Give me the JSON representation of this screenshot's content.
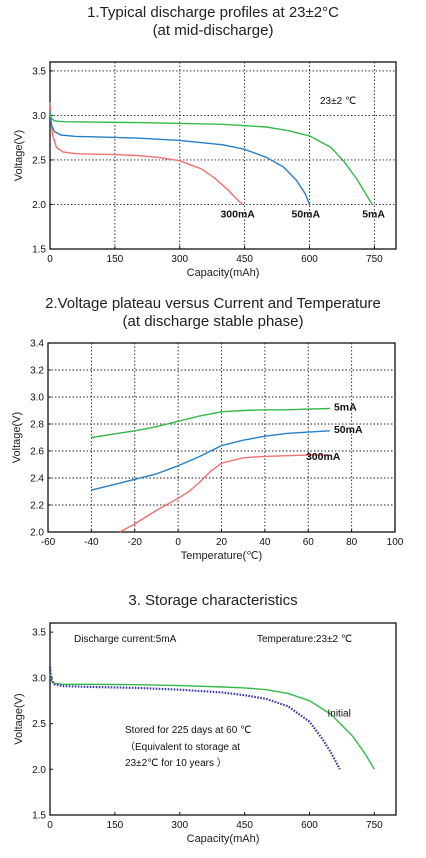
{
  "chart_data": [
    {
      "type": "line",
      "title": "1.Typical discharge profiles at 23±2°C",
      "subtitle": "(at mid-discharge)",
      "xlabel": "Capacity(mAh)",
      "ylabel": "Voltage(V)",
      "xlim": [
        0,
        800
      ],
      "ylim": [
        1.5,
        3.6
      ],
      "xticks": [
        0,
        150,
        300,
        450,
        600,
        750
      ],
      "yticks": [
        1.5,
        2.0,
        2.5,
        3.0,
        3.5
      ],
      "xtick_labels": [
        "0",
        "150",
        "300",
        "450",
        "600",
        "750"
      ],
      "ytick_labels": [
        "1.5",
        "2.0",
        "2.5",
        "3.0",
        "3.5"
      ],
      "grid": true,
      "annotations": [
        "23±2 ℃"
      ],
      "colors": {
        "300mA": "#f07070",
        "50mA": "#2a7fc4",
        "5mA": "#35b84a"
      },
      "series": [
        {
          "name": "300mA",
          "x": [
            0,
            2,
            6,
            15,
            30,
            60,
            100,
            150,
            200,
            250,
            300,
            350,
            380,
            410,
            430,
            445
          ],
          "y": [
            3.15,
            2.95,
            2.78,
            2.64,
            2.59,
            2.57,
            2.565,
            2.56,
            2.55,
            2.53,
            2.49,
            2.4,
            2.3,
            2.17,
            2.07,
            2.0
          ]
        },
        {
          "name": "50mA",
          "x": [
            0,
            3,
            10,
            25,
            60,
            100,
            200,
            300,
            400,
            450,
            500,
            540,
            570,
            590,
            600
          ],
          "y": [
            3.05,
            2.9,
            2.82,
            2.78,
            2.765,
            2.76,
            2.745,
            2.72,
            2.67,
            2.62,
            2.53,
            2.42,
            2.27,
            2.12,
            2.0
          ]
        },
        {
          "name": "5mA",
          "x": [
            0,
            3,
            10,
            30,
            100,
            200,
            300,
            400,
            500,
            550,
            600,
            650,
            680,
            710,
            730,
            745
          ],
          "y": [
            3.02,
            2.97,
            2.94,
            2.93,
            2.925,
            2.92,
            2.91,
            2.9,
            2.87,
            2.83,
            2.77,
            2.64,
            2.48,
            2.28,
            2.12,
            2.0
          ]
        }
      ]
    },
    {
      "type": "line",
      "title": "2.Voltage plateau versus Current and Temperature",
      "subtitle": "(at discharge stable phase)",
      "xlabel": "Temperature(℃)",
      "ylabel": "Voltage(V)",
      "xlim": [
        -60,
        100
      ],
      "ylim": [
        2.0,
        3.4
      ],
      "xticks": [
        -60,
        -40,
        -20,
        0,
        20,
        40,
        60,
        80,
        100
      ],
      "yticks": [
        2.0,
        2.2,
        2.4,
        2.6,
        2.8,
        3.0,
        3.2,
        3.4
      ],
      "xtick_labels": [
        "-60",
        "-40",
        "-20",
        "0",
        "20",
        "40",
        "60",
        "80",
        "100"
      ],
      "ytick_labels": [
        "2.0",
        "2.2",
        "2.4",
        "2.6",
        "2.8",
        "3.0",
        "3.2",
        "3.4"
      ],
      "grid": true,
      "colors": {
        "5mA": "#35b84a",
        "50mA": "#2a7fc4",
        "300mA": "#f07070"
      },
      "series": [
        {
          "name": "5mA",
          "x": [
            -40,
            -20,
            -10,
            0,
            10,
            20,
            30,
            40,
            50,
            60,
            70
          ],
          "y": [
            2.7,
            2.75,
            2.78,
            2.82,
            2.86,
            2.89,
            2.9,
            2.905,
            2.905,
            2.91,
            2.915
          ]
        },
        {
          "name": "50mA",
          "x": [
            -40,
            -30,
            -20,
            -10,
            0,
            10,
            20,
            30,
            40,
            50,
            60,
            70
          ],
          "y": [
            2.31,
            2.35,
            2.39,
            2.43,
            2.49,
            2.56,
            2.64,
            2.68,
            2.71,
            2.73,
            2.74,
            2.75
          ]
        },
        {
          "name": "300mA",
          "x": [
            -27,
            -20,
            -10,
            0,
            5,
            10,
            15,
            20,
            30,
            40,
            50,
            60,
            70
          ],
          "y": [
            2.0,
            2.06,
            2.16,
            2.25,
            2.3,
            2.37,
            2.45,
            2.51,
            2.55,
            2.56,
            2.565,
            2.57,
            2.57
          ]
        }
      ]
    },
    {
      "type": "line",
      "title": "3. Storage characteristics",
      "xlabel": "Capacity(mAh)",
      "ylabel": "Voltage(V)",
      "xlim": [
        0,
        800
      ],
      "ylim": [
        1.5,
        3.6
      ],
      "xticks": [
        0,
        150,
        300,
        450,
        600,
        750
      ],
      "yticks": [
        1.5,
        2.0,
        2.5,
        3.0,
        3.5
      ],
      "xtick_labels": [
        "0",
        "150",
        "300",
        "450",
        "600",
        "750"
      ],
      "ytick_labels": [
        "1.5",
        "2.0",
        "2.5",
        "3.0",
        "3.5"
      ],
      "grid": false,
      "annotations": [
        "Discharge current:5mA",
        "Temperature:23±2 ℃",
        "Stored for 225 days at 60  ℃",
        "（Equivalent to storage at",
        "23±2℃ for 10 years   ）"
      ],
      "colors": {
        "Initial": "#35b84a",
        "Stored": "#3a3aa8"
      },
      "series": [
        {
          "name": "Initial",
          "x": [
            0,
            3,
            10,
            30,
            100,
            200,
            300,
            400,
            450,
            500,
            550,
            600,
            650,
            700,
            730,
            750
          ],
          "y": [
            3.05,
            2.97,
            2.94,
            2.93,
            2.93,
            2.925,
            2.915,
            2.9,
            2.89,
            2.87,
            2.83,
            2.75,
            2.6,
            2.36,
            2.16,
            2.0
          ]
        },
        {
          "name": "",
          "x": [
            0,
            3,
            10,
            30,
            100,
            200,
            300,
            400,
            450,
            500,
            550,
            600,
            630,
            650,
            670
          ],
          "y": [
            3.12,
            2.98,
            2.93,
            2.91,
            2.9,
            2.89,
            2.87,
            2.84,
            2.81,
            2.77,
            2.69,
            2.52,
            2.33,
            2.18,
            2.0
          ]
        }
      ]
    }
  ]
}
